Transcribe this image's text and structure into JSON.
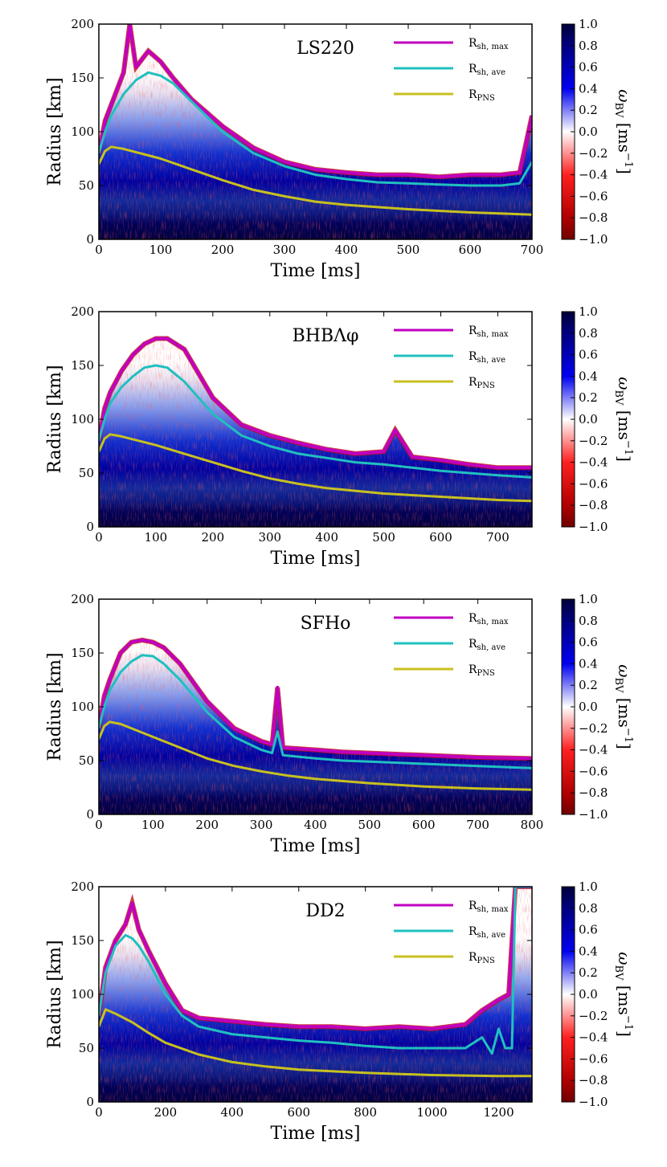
{
  "chart_data": [
    {
      "type": "heatmap",
      "title": "LS220",
      "xlabel": "Time [ms]",
      "ylabel": "Radius [km]",
      "xlim": [
        0,
        700
      ],
      "ylim": [
        0,
        200
      ],
      "xticks": [
        0,
        100,
        200,
        300,
        400,
        500,
        600,
        700
      ],
      "yticks": [
        0,
        50,
        100,
        150,
        200
      ],
      "colorbar": {
        "label": "ω_BV [ms^-1]",
        "min": -1.0,
        "max": 1.0,
        "ticks": [
          "1.0",
          "0.8",
          "0.6",
          "0.4",
          "0.2",
          "0.0",
          "−0.2",
          "−0.4",
          "−0.6",
          "−0.8",
          "−1.0"
        ],
        "colormap": "seismic_r (blue positive, red negative)"
      },
      "series": [
        {
          "name": "R_sh,max",
          "color": "#c000c0",
          "x": [
            0,
            10,
            20,
            40,
            50,
            60,
            80,
            100,
            120,
            150,
            200,
            250,
            300,
            350,
            400,
            450,
            500,
            550,
            600,
            650,
            680,
            700
          ],
          "values": [
            80,
            110,
            125,
            155,
            200,
            160,
            175,
            165,
            150,
            130,
            105,
            85,
            72,
            65,
            62,
            60,
            60,
            58,
            60,
            60,
            62,
            115
          ]
        },
        {
          "name": "R_sh,ave",
          "color": "#20c0c0",
          "x": [
            0,
            10,
            20,
            40,
            60,
            80,
            100,
            120,
            150,
            200,
            250,
            300,
            350,
            400,
            450,
            500,
            550,
            600,
            650,
            680,
            700
          ],
          "values": [
            80,
            100,
            115,
            135,
            148,
            155,
            152,
            145,
            128,
            100,
            80,
            68,
            60,
            56,
            53,
            52,
            51,
            50,
            50,
            52,
            72
          ]
        },
        {
          "name": "R_PNS",
          "color": "#c8c020",
          "x": [
            0,
            10,
            20,
            40,
            100,
            150,
            200,
            250,
            300,
            350,
            400,
            500,
            600,
            700
          ],
          "values": [
            70,
            82,
            86,
            84,
            75,
            65,
            55,
            46,
            40,
            35,
            32,
            28,
            25,
            23
          ]
        }
      ],
      "legend": {
        "labels": [
          "R",
          "R",
          "R"
        ],
        "subscripts": [
          "sh, max",
          "sh, ave",
          "PNS"
        ],
        "position": "top-right"
      }
    },
    {
      "type": "heatmap",
      "title": "BHBΛφ",
      "xlabel": "Time [ms]",
      "ylabel": "Radius [km]",
      "xlim": [
        0,
        760
      ],
      "ylim": [
        0,
        200
      ],
      "xticks": [
        0,
        100,
        200,
        300,
        400,
        500,
        600,
        700
      ],
      "yticks": [
        0,
        50,
        100,
        150,
        200
      ],
      "colorbar": {
        "label": "ω_BV [ms^-1]",
        "min": -1.0,
        "max": 1.0,
        "ticks": [
          "1.0",
          "0.8",
          "0.6",
          "0.4",
          "0.2",
          "0.0",
          "−0.2",
          "−0.4",
          "−0.6",
          "−0.8",
          "−1.0"
        ],
        "colormap": "seismic_r (blue positive, red negative)"
      },
      "series": [
        {
          "name": "R_sh,max",
          "color": "#c000c0",
          "x": [
            0,
            10,
            20,
            40,
            60,
            80,
            100,
            120,
            150,
            200,
            250,
            300,
            350,
            400,
            450,
            500,
            520,
            550,
            600,
            650,
            700,
            760
          ],
          "values": [
            80,
            110,
            125,
            145,
            160,
            170,
            175,
            175,
            165,
            120,
            95,
            85,
            78,
            72,
            68,
            70,
            90,
            65,
            62,
            58,
            55,
            55
          ]
        },
        {
          "name": "R_sh,ave",
          "color": "#20c0c0",
          "x": [
            0,
            10,
            20,
            40,
            60,
            80,
            100,
            120,
            150,
            200,
            250,
            300,
            350,
            400,
            450,
            500,
            550,
            600,
            650,
            700,
            760
          ],
          "values": [
            80,
            100,
            115,
            130,
            140,
            148,
            150,
            148,
            135,
            105,
            85,
            75,
            68,
            64,
            60,
            58,
            55,
            52,
            50,
            48,
            46
          ]
        },
        {
          "name": "R_PNS",
          "color": "#c8c020",
          "x": [
            0,
            10,
            20,
            40,
            100,
            150,
            200,
            250,
            300,
            350,
            400,
            500,
            600,
            700,
            760
          ],
          "values": [
            70,
            82,
            86,
            84,
            76,
            68,
            60,
            52,
            45,
            40,
            36,
            31,
            28,
            25,
            24
          ]
        }
      ],
      "legend": {
        "labels": [
          "R",
          "R",
          "R"
        ],
        "subscripts": [
          "sh, max",
          "sh, ave",
          "PNS"
        ],
        "position": "top-right"
      }
    },
    {
      "type": "heatmap",
      "title": "SFHo",
      "xlabel": "Time [ms]",
      "ylabel": "Radius [km]",
      "xlim": [
        0,
        800
      ],
      "ylim": [
        0,
        200
      ],
      "xticks": [
        0,
        100,
        200,
        300,
        400,
        500,
        600,
        700,
        800
      ],
      "yticks": [
        0,
        50,
        100,
        150,
        200
      ],
      "colorbar": {
        "label": "ω_BV [ms^-1]",
        "min": -1.0,
        "max": 1.0,
        "ticks": [
          "1.0",
          "0.8",
          "0.6",
          "0.4",
          "0.2",
          "0.0",
          "−0.2",
          "−0.4",
          "−0.6",
          "−0.8",
          "−1.0"
        ],
        "colormap": "seismic_r (blue positive, red negative)"
      },
      "series": [
        {
          "name": "R_sh,max",
          "color": "#c000c0",
          "x": [
            0,
            10,
            20,
            40,
            60,
            80,
            100,
            120,
            150,
            200,
            250,
            300,
            320,
            330,
            340,
            400,
            450,
            500,
            550,
            600,
            700,
            800
          ],
          "values": [
            80,
            110,
            125,
            150,
            160,
            162,
            160,
            155,
            140,
            105,
            80,
            68,
            65,
            118,
            62,
            60,
            58,
            57,
            56,
            55,
            53,
            52
          ]
        },
        {
          "name": "R_sh,ave",
          "color": "#20c0c0",
          "x": [
            0,
            10,
            20,
            40,
            60,
            80,
            100,
            120,
            150,
            200,
            250,
            300,
            320,
            330,
            340,
            400,
            450,
            500,
            600,
            700,
            800
          ],
          "values": [
            80,
            100,
            115,
            132,
            142,
            148,
            147,
            140,
            125,
            95,
            72,
            60,
            57,
            77,
            55,
            52,
            50,
            49,
            47,
            45,
            43
          ]
        },
        {
          "name": "R_PNS",
          "color": "#c8c020",
          "x": [
            0,
            10,
            20,
            40,
            100,
            150,
            200,
            250,
            300,
            350,
            400,
            500,
            600,
            700,
            800
          ],
          "values": [
            70,
            82,
            86,
            84,
            72,
            62,
            52,
            45,
            40,
            36,
            33,
            29,
            26,
            24,
            23
          ]
        }
      ],
      "legend": {
        "labels": [
          "R",
          "R",
          "R"
        ],
        "subscripts": [
          "sh, max",
          "sh, ave",
          "PNS"
        ],
        "position": "top-right"
      }
    },
    {
      "type": "heatmap",
      "title": "DD2",
      "xlabel": "Time [ms]",
      "ylabel": "Radius [km]",
      "xlim": [
        0,
        1300
      ],
      "ylim": [
        0,
        200
      ],
      "xticks": [
        0,
        200,
        400,
        600,
        800,
        1000,
        1200
      ],
      "yticks": [
        0,
        50,
        100,
        150,
        200
      ],
      "colorbar": {
        "label": "ω_BV [ms^-1]",
        "min": -1.0,
        "max": 1.0,
        "ticks": [
          "1.0",
          "0.8",
          "0.6",
          "0.4",
          "0.2",
          "0.0",
          "−0.2",
          "−0.4",
          "−0.6",
          "−0.8",
          "−1.0"
        ],
        "colormap": "seismic_r (blue positive, red negative)"
      },
      "series": [
        {
          "name": "R_sh,max",
          "color": "#c000c0",
          "x": [
            0,
            20,
            50,
            80,
            100,
            120,
            150,
            200,
            250,
            300,
            400,
            500,
            600,
            700,
            800,
            900,
            1000,
            1100,
            1150,
            1200,
            1230,
            1250,
            1260,
            1300
          ],
          "values": [
            80,
            125,
            150,
            165,
            185,
            160,
            140,
            110,
            85,
            78,
            75,
            72,
            70,
            70,
            68,
            70,
            68,
            72,
            85,
            95,
            100,
            200,
            200,
            200
          ]
        },
        {
          "name": "R_sh,ave",
          "color": "#20c0c0",
          "x": [
            0,
            20,
            50,
            80,
            100,
            120,
            150,
            200,
            250,
            300,
            400,
            500,
            600,
            700,
            800,
            900,
            1000,
            1100,
            1150,
            1180,
            1200,
            1220,
            1240,
            1250,
            1260,
            1300
          ],
          "values": [
            80,
            120,
            145,
            155,
            152,
            145,
            130,
            100,
            80,
            70,
            63,
            60,
            57,
            55,
            52,
            50,
            50,
            50,
            60,
            45,
            68,
            50,
            50,
            200,
            200,
            200
          ]
        },
        {
          "name": "R_PNS",
          "color": "#c8c020",
          "x": [
            0,
            20,
            50,
            100,
            150,
            200,
            300,
            400,
            500,
            600,
            800,
            1000,
            1200,
            1300
          ],
          "values": [
            70,
            86,
            82,
            74,
            64,
            55,
            44,
            37,
            33,
            30,
            27,
            25,
            24,
            24
          ]
        }
      ],
      "legend": {
        "labels": [
          "R",
          "R",
          "R"
        ],
        "subscripts": [
          "sh, max",
          "sh, ave",
          "PNS"
        ],
        "position": "top-right"
      }
    }
  ]
}
